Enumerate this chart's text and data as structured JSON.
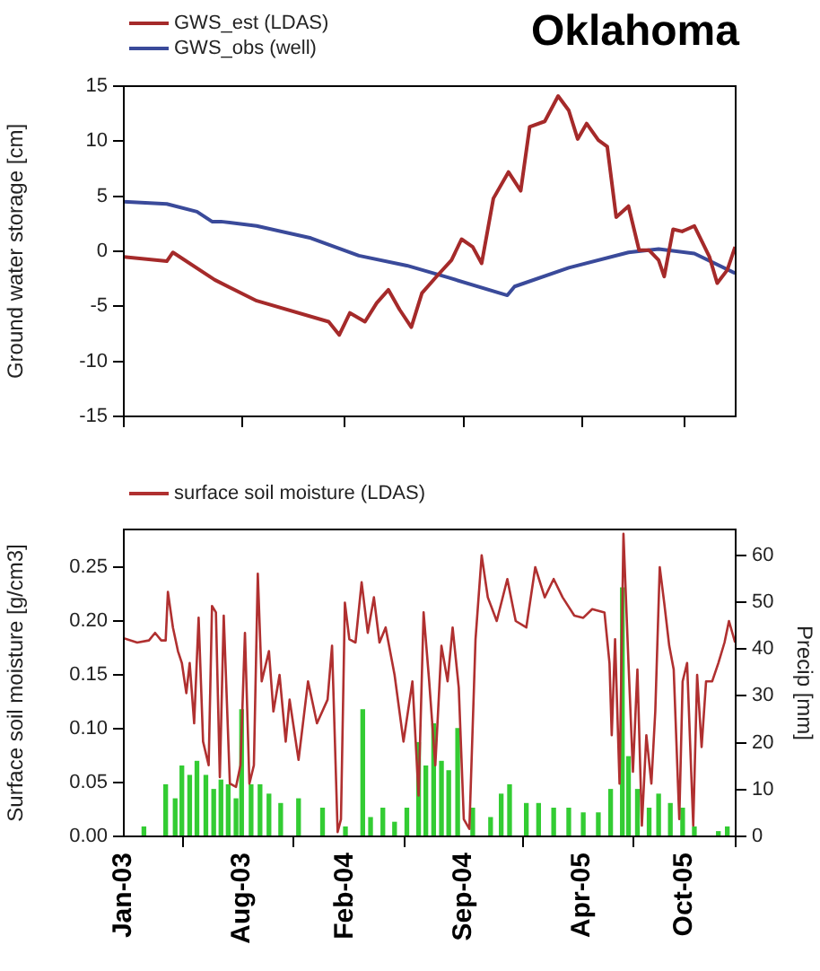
{
  "chart_data": [
    {
      "type": "line",
      "title": "Oklahoma",
      "ylabel": "Ground water storage [cm]",
      "legend": "top left",
      "grid": false,
      "marker": "none",
      "tick_labels": "y",
      "xlim": [
        "2003-01-01",
        "2006-01-01"
      ],
      "xticks": [
        {
          "value": "2003-01-01",
          "label": null
        },
        {
          "value": "2003-08-01",
          "label": null
        },
        {
          "value": "2004-02-01",
          "label": null
        },
        {
          "value": "2004-09-01",
          "label": null
        },
        {
          "value": "2005-04-01",
          "label": null
        },
        {
          "value": "2005-10-01",
          "label": null
        }
      ],
      "ylim": [
        -15,
        15
      ],
      "yticks": [
        -15,
        -10,
        -5,
        0,
        5,
        10,
        15
      ],
      "series": [
        {
          "name": "GWS_est (LDAS)",
          "color": "#a52a2a",
          "x": [
            "2003-01-01",
            "2003-03-19",
            "2003-03-30",
            "2003-06-13",
            "2003-08-27",
            "2004-01-03",
            "2004-01-22",
            "2004-02-10",
            "2004-03-08",
            "2004-03-29",
            "2004-04-19",
            "2004-05-09",
            "2004-05-30",
            "2004-06-18",
            "2004-07-14",
            "2004-08-10",
            "2004-08-28",
            "2004-09-17",
            "2004-10-03",
            "2004-10-24",
            "2004-11-20",
            "2004-12-12",
            "2004-12-28",
            "2005-01-24",
            "2005-02-17",
            "2005-03-08",
            "2005-03-24",
            "2005-04-09",
            "2005-04-30",
            "2005-05-16",
            "2005-06-01",
            "2005-06-23",
            "2005-07-12",
            "2005-07-30",
            "2005-08-16",
            "2005-08-26",
            "2005-09-11",
            "2005-09-27",
            "2005-10-19",
            "2005-11-15",
            "2005-11-29",
            "2005-12-17",
            "2005-12-31"
          ],
          "values": [
            -0.5,
            -0.9,
            -0.1,
            -2.6,
            -4.5,
            -6.4,
            -7.6,
            -5.6,
            -6.4,
            -4.7,
            -3.5,
            -5.3,
            -6.9,
            -3.8,
            -2.3,
            -0.8,
            1.1,
            0.4,
            -1.1,
            4.8,
            7.2,
            5.5,
            11.3,
            11.8,
            14.1,
            12.8,
            10.2,
            11.6,
            10.1,
            9.5,
            3.1,
            4.1,
            0.1,
            0.1,
            -0.8,
            -2.3,
            2.0,
            1.8,
            2.3,
            -0.5,
            -2.9,
            -1.7,
            0.4
          ]
        },
        {
          "name": "GWS_obs (well)",
          "color": "#3a4a9a",
          "x": [
            "2003-01-01",
            "2003-03-19",
            "2003-05-12",
            "2003-06-08",
            "2003-06-24",
            "2003-08-27",
            "2003-12-02",
            "2004-02-26",
            "2004-05-22",
            "2004-08-05",
            "2004-11-18",
            "2004-12-01",
            "2005-03-08",
            "2005-06-23",
            "2005-08-16",
            "2005-10-19",
            "2005-12-31"
          ],
          "values": [
            4.5,
            4.3,
            3.6,
            2.7,
            2.7,
            2.3,
            1.2,
            -0.4,
            -1.3,
            -2.4,
            -4.0,
            -3.2,
            -1.5,
            -0.1,
            0.2,
            -0.2,
            -2.0
          ]
        }
      ]
    },
    {
      "type": "line",
      "ylabel": "Surface soil moisture [g/cm3]",
      "y2label": "Precip [mm]",
      "legend": "top left",
      "grid": false,
      "marker": "none",
      "xlim": [
        "2003-01-01",
        "2006-01-01"
      ],
      "xticks": [
        {
          "value": "2003-01-01",
          "label": "Jan-03"
        },
        {
          "value": "2003-08-01",
          "label": "Aug-03"
        },
        {
          "value": "2004-02-01",
          "label": "Feb-04"
        },
        {
          "value": "2004-09-01",
          "label": "Sep-04"
        },
        {
          "value": "2005-04-01",
          "label": "Apr-05"
        },
        {
          "value": "2005-10-01",
          "label": "Oct-05"
        }
      ],
      "ylim": [
        0,
        0.285
      ],
      "yticks": [
        {
          "value": 0,
          "label": "0.00"
        },
        {
          "value": 0.05,
          "label": "0.05"
        },
        {
          "value": 0.1,
          "label": "0.10"
        },
        {
          "value": 0.15,
          "label": "0.15"
        },
        {
          "value": 0.2,
          "label": "0.20"
        },
        {
          "value": 0.25,
          "label": "0.25"
        }
      ],
      "y2lim": [
        0,
        65.5
      ],
      "y2ticks": [
        0,
        10,
        20,
        30,
        40,
        50,
        60
      ],
      "series": [
        {
          "name": "surface soil moisture (LDAS)",
          "color": "#b03030",
          "x": [
            "2003-01-01",
            "2003-01-25",
            "2003-02-15",
            "2003-02-26",
            "2003-03-09",
            "2003-03-17",
            "2003-03-21",
            "2003-03-30",
            "2003-04-08",
            "2003-04-15",
            "2003-04-23",
            "2003-04-29",
            "2003-05-07",
            "2003-05-15",
            "2003-05-23",
            "2003-06-02",
            "2003-06-08",
            "2003-06-15",
            "2003-06-22",
            "2003-06-29",
            "2003-07-10",
            "2003-07-21",
            "2003-07-29",
            "2003-08-06",
            "2003-08-14",
            "2003-08-22",
            "2003-08-29",
            "2003-09-05",
            "2003-09-18",
            "2003-09-26",
            "2003-10-07",
            "2003-10-18",
            "2003-10-25",
            "2003-11-10",
            "2003-11-27",
            "2003-12-13",
            "2004-01-01",
            "2004-01-09",
            "2004-01-19",
            "2004-01-25",
            "2004-02-01",
            "2004-02-09",
            "2004-02-20",
            "2004-03-02",
            "2004-03-13",
            "2004-03-24",
            "2004-04-03",
            "2004-04-14",
            "2004-04-30",
            "2004-05-16",
            "2004-06-01",
            "2004-06-12",
            "2004-06-21",
            "2004-07-01",
            "2004-07-12",
            "2004-07-23",
            "2004-08-03",
            "2004-08-12",
            "2004-08-23",
            "2004-09-01",
            "2004-09-11",
            "2004-09-22",
            "2004-10-03",
            "2004-10-14",
            "2004-10-30",
            "2004-11-18",
            "2004-12-03",
            "2004-12-22",
            "2005-01-07",
            "2005-01-24",
            "2005-02-09",
            "2005-02-25",
            "2005-03-18",
            "2005-04-03",
            "2005-04-19",
            "2005-05-11",
            "2005-05-20",
            "2005-05-24",
            "2005-05-30",
            "2005-06-07",
            "2005-06-14",
            "2005-06-23",
            "2005-07-01",
            "2005-07-09",
            "2005-07-17",
            "2005-07-25",
            "2005-08-03",
            "2005-08-10",
            "2005-08-18",
            "2005-08-26",
            "2005-09-04",
            "2005-09-12",
            "2005-09-22",
            "2005-09-28",
            "2005-10-06",
            "2005-10-17",
            "2005-10-24",
            "2005-11-01",
            "2005-11-09",
            "2005-11-20",
            "2005-12-01",
            "2005-12-12",
            "2005-12-20",
            "2005-12-31"
          ],
          "values": [
            0.184,
            0.18,
            0.182,
            0.189,
            0.182,
            0.182,
            0.227,
            0.194,
            0.172,
            0.161,
            0.133,
            0.161,
            0.105,
            0.203,
            0.088,
            0.066,
            0.214,
            0.208,
            0.055,
            0.205,
            0.049,
            0.046,
            0.066,
            0.189,
            0.049,
            0.066,
            0.244,
            0.144,
            0.172,
            0.116,
            0.15,
            0.088,
            0.127,
            0.071,
            0.144,
            0.105,
            0.127,
            0.177,
            0.004,
            0.016,
            0.217,
            0.183,
            0.18,
            0.236,
            0.189,
            0.222,
            0.18,
            0.194,
            0.15,
            0.088,
            0.144,
            0.038,
            0.208,
            0.144,
            0.066,
            0.177,
            0.144,
            0.194,
            0.138,
            0.016,
            0.007,
            0.183,
            0.261,
            0.222,
            0.2,
            0.239,
            0.2,
            0.194,
            0.25,
            0.222,
            0.239,
            0.222,
            0.205,
            0.203,
            0.211,
            0.208,
            0.161,
            0.094,
            0.183,
            0.049,
            0.281,
            0.161,
            0.06,
            0.155,
            0.01,
            0.094,
            0.049,
            0.116,
            0.25,
            0.217,
            0.177,
            0.155,
            0.016,
            0.144,
            0.161,
            0.01,
            0.15,
            0.083,
            0.144,
            0.144,
            0.161,
            0.18,
            0.2,
            0.18
          ]
        },
        {
          "type": "bar",
          "axis": "y2",
          "color": "#33cc33",
          "x": [
            "2003-02-06",
            "2003-03-17",
            "2003-04-03",
            "2003-04-15",
            "2003-04-29",
            "2003-05-12",
            "2003-05-28",
            "2003-06-11",
            "2003-06-24",
            "2003-07-07",
            "2003-07-21",
            "2003-07-31",
            "2003-08-17",
            "2003-09-02",
            "2003-09-18",
            "2003-10-09",
            "2003-11-10",
            "2003-12-23",
            "2004-02-02",
            "2004-03-04",
            "2004-03-18",
            "2004-04-09",
            "2004-04-30",
            "2004-05-22",
            "2004-06-12",
            "2004-06-25",
            "2004-07-09",
            "2004-07-23",
            "2004-08-05",
            "2004-08-21",
            "2004-09-17",
            "2004-10-19",
            "2004-11-07",
            "2004-11-22",
            "2004-12-22",
            "2005-01-13",
            "2005-02-09",
            "2005-03-08",
            "2005-04-03",
            "2005-04-30",
            "2005-05-22",
            "2005-06-12",
            "2005-06-23",
            "2005-07-09",
            "2005-07-30",
            "2005-08-16",
            "2005-09-06",
            "2005-09-28",
            "2005-10-19",
            "2005-12-01",
            "2005-12-17"
          ],
          "values": [
            2,
            11,
            8,
            15,
            13,
            16,
            13,
            10,
            12,
            11,
            8,
            27,
            11,
            11,
            9,
            7,
            8,
            6,
            2,
            27,
            4,
            6,
            3,
            6,
            20,
            15,
            24,
            16,
            14,
            23,
            6,
            4,
            9,
            11,
            7,
            7,
            6,
            6,
            5,
            5,
            10,
            53,
            17,
            10,
            6,
            9,
            7,
            6,
            2,
            1,
            2
          ]
        }
      ]
    }
  ]
}
